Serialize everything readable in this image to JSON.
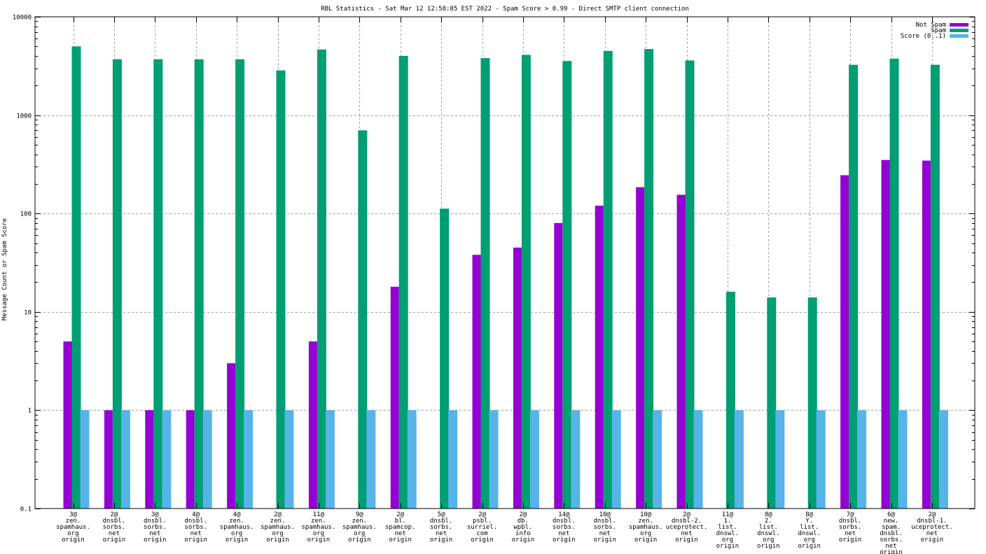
{
  "chart_data": {
    "type": "bar",
    "title": "RBL Statistics - Sat Mar 12 12:58:05 EST 2022 - Spam Score > 0.99 - Direct SMTP client connection",
    "xlabel": "",
    "ylabel": "Message Count or Spam Score",
    "yscale": "log",
    "ylim": [
      0.1,
      10000
    ],
    "yticks": [
      {
        "value": 0.1,
        "label": "0.1"
      },
      {
        "value": 1,
        "label": "1"
      },
      {
        "value": 10,
        "label": "10"
      },
      {
        "value": 100,
        "label": "100"
      },
      {
        "value": 1000,
        "label": "1000"
      },
      {
        "value": 10000,
        "label": "10000"
      }
    ],
    "grid": true,
    "legend_position": "top-right",
    "categories": [
      [
        "3@",
        "zen.",
        "spamhaus.",
        "org",
        "origin"
      ],
      [
        "2@",
        "dnsbl.",
        "sorbs.",
        "net",
        "origin"
      ],
      [
        "3@",
        "dnsbl.",
        "sorbs.",
        "net",
        "origin"
      ],
      [
        "4@",
        "dnsbl.",
        "sorbs.",
        "net",
        "origin"
      ],
      [
        "4@",
        "zen.",
        "spamhaus.",
        "org",
        "origin"
      ],
      [
        "2@",
        "zen.",
        "spamhaus.",
        "org",
        "origin"
      ],
      [
        "11@",
        "zen.",
        "spamhaus.",
        "org",
        "origin"
      ],
      [
        "9@",
        "zen.",
        "spamhaus.",
        "org",
        "origin"
      ],
      [
        "2@",
        "bl.",
        "spamcop.",
        "net",
        "origin"
      ],
      [
        "5@",
        "dnsbl.",
        "sorbs.",
        "net",
        "origin"
      ],
      [
        "2@",
        "psbl.",
        "surriel.",
        "com",
        "origin"
      ],
      [
        "2@",
        "db.",
        "wpbl.",
        "info",
        "origin"
      ],
      [
        "14@",
        "dnsbl.",
        "sorbs.",
        "net",
        "origin"
      ],
      [
        "10@",
        "dnsbl.",
        "sorbs.",
        "net",
        "origin"
      ],
      [
        "10@",
        "zen.",
        "spamhaus.",
        "org",
        "origin"
      ],
      [
        "2@",
        "dnsbl-2.",
        "uceprotect.",
        "net",
        "origin"
      ],
      [
        "11@",
        "1.",
        "list.",
        "dnswl.",
        "org",
        "origin"
      ],
      [
        "8@",
        "2.",
        "list.",
        "dnswl.",
        "org",
        "origin"
      ],
      [
        "8@",
        "Y.",
        "list.",
        "dnswl.",
        "org",
        "origin"
      ],
      [
        "7@",
        "dnsbl.",
        "sorbs.",
        "net",
        "origin"
      ],
      [
        "6@",
        "new.",
        "spam.",
        "dnsbl.",
        "sorbs.",
        "net",
        "origin"
      ],
      [
        "2@",
        "dnsbl-1.",
        "uceprotect.",
        "net",
        "origin"
      ]
    ],
    "series": [
      {
        "name": "Not Spam",
        "color": "#9400d3",
        "values": [
          5,
          1,
          1,
          1,
          3,
          null,
          5,
          null,
          18,
          null,
          38,
          45,
          80,
          120,
          185,
          155,
          null,
          null,
          null,
          245,
          350,
          345
        ]
      },
      {
        "name": "Spam",
        "color": "#009e73",
        "values": [
          5000,
          3700,
          3700,
          3700,
          3700,
          2850,
          4650,
          700,
          4000,
          112,
          3800,
          4100,
          3550,
          4500,
          4700,
          3600,
          16,
          14,
          14,
          3250,
          3750,
          3250
        ]
      },
      {
        "name": "Score (0..1)",
        "color": "#56b4e9",
        "values": [
          1,
          1,
          1,
          1,
          1,
          1,
          1,
          1,
          1,
          1,
          1,
          1,
          1,
          1,
          1,
          1,
          1,
          1,
          1,
          1,
          1,
          1
        ]
      }
    ]
  }
}
